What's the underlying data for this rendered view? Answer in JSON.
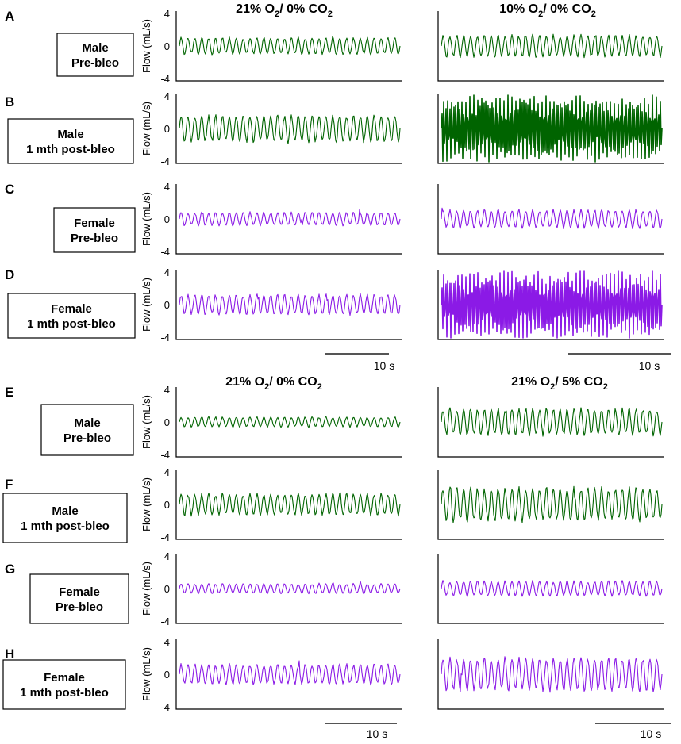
{
  "colors": {
    "male": "#006400",
    "female": "#8b1ae6",
    "axis": "#000000"
  },
  "y_axis": {
    "label": "Flow (mL/s)",
    "ticks": [
      "4",
      "0",
      "-4"
    ],
    "ylim": [
      -4,
      4
    ]
  },
  "scale_bar": {
    "label": "10 s"
  },
  "sections": [
    {
      "titles": [
        {
          "main": "21% O",
          "sub1": "2",
          "mid": "/ 0% CO",
          "sub2": "2"
        },
        {
          "main": "10% O",
          "sub1": "2",
          "mid": "/ 0% CO",
          "sub2": "2"
        }
      ]
    },
    {
      "titles": [
        {
          "main": "21% O",
          "sub1": "2",
          "mid": "/ 0% CO",
          "sub2": "2"
        },
        {
          "main": "21% O",
          "sub1": "2",
          "mid": "/ 5% CO",
          "sub2": "2"
        }
      ]
    }
  ],
  "panels": [
    {
      "letter": "A",
      "group": [
        "Male",
        "Pre-bleo"
      ],
      "sex": "male"
    },
    {
      "letter": "B",
      "group": [
        "Male",
        "1 mth post-bleo"
      ],
      "sex": "male"
    },
    {
      "letter": "C",
      "group": [
        "Female",
        "Pre-bleo"
      ],
      "sex": "female"
    },
    {
      "letter": "D",
      "group": [
        "Female",
        "1 mth post-bleo"
      ],
      "sex": "female"
    },
    {
      "letter": "E",
      "group": [
        "Male",
        "Pre-bleo"
      ],
      "sex": "male"
    },
    {
      "letter": "F",
      "group": [
        "Male",
        "1 mth post-bleo"
      ],
      "sex": "male"
    },
    {
      "letter": "G",
      "group": [
        "Female",
        "Pre-bleo"
      ],
      "sex": "female"
    },
    {
      "letter": "H",
      "group": [
        "Female",
        "1 mth post-bleo"
      ],
      "sex": "female"
    }
  ],
  "chart_data": {
    "type": "line",
    "xlabel": "",
    "ylabel": "Flow (mL/s)",
    "ylim": [
      -4,
      4
    ],
    "grid": false,
    "series": [
      {
        "panel": "A",
        "condition": "21% O2/ 0% CO2",
        "amplitude": 1.0
      },
      {
        "panel": "A",
        "condition": "10% O2/ 0% CO2",
        "amplitude": 1.3
      },
      {
        "panel": "B",
        "condition": "21% O2/ 0% CO2",
        "amplitude": 1.6
      },
      {
        "panel": "B",
        "condition": "10% O2/ 0% CO2",
        "amplitude": 3.8
      },
      {
        "panel": "C",
        "condition": "21% O2/ 0% CO2",
        "amplitude": 0.8
      },
      {
        "panel": "C",
        "condition": "10% O2/ 0% CO2",
        "amplitude": 1.1
      },
      {
        "panel": "D",
        "condition": "21% O2/ 0% CO2",
        "amplitude": 1.2
      },
      {
        "panel": "D",
        "condition": "10% O2/ 0% CO2",
        "amplitude": 3.8
      },
      {
        "panel": "E",
        "condition": "21% O2/ 0% CO2",
        "amplitude": 0.6
      },
      {
        "panel": "E",
        "condition": "21% O2/ 5% CO2",
        "amplitude": 1.6
      },
      {
        "panel": "F",
        "condition": "21% O2/ 0% CO2",
        "amplitude": 1.3
      },
      {
        "panel": "F",
        "condition": "21% O2/ 5% CO2",
        "amplitude": 2.0
      },
      {
        "panel": "G",
        "condition": "21% O2/ 0% CO2",
        "amplitude": 0.6
      },
      {
        "panel": "G",
        "condition": "21% O2/ 5% CO2",
        "amplitude": 0.9
      },
      {
        "panel": "H",
        "condition": "21% O2/ 0% CO2",
        "amplitude": 1.2
      },
      {
        "panel": "H",
        "condition": "21% O2/ 5% CO2",
        "amplitude": 2.0
      }
    ]
  }
}
